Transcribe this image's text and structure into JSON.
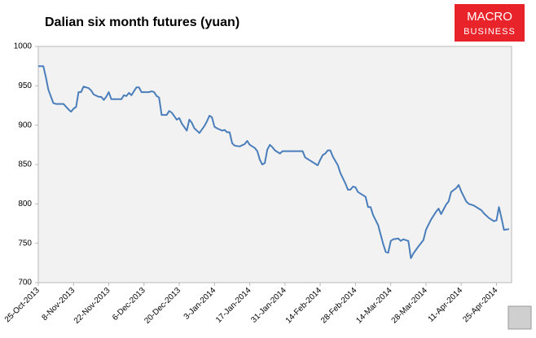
{
  "chart_data": {
    "type": "line",
    "title": "Dalian six month futures (yuan)",
    "color": "#4a7ebb",
    "x": [
      "2013-10-25",
      "2013-10-27",
      "2013-10-28",
      "2013-10-29",
      "2013-10-31",
      "2013-11-01",
      "2013-11-04",
      "2013-11-06",
      "2013-11-07",
      "2013-11-08",
      "2013-11-09",
      "2013-11-10",
      "2013-11-11",
      "2013-11-12",
      "2013-11-14",
      "2013-11-15",
      "2013-11-16",
      "2013-11-18",
      "2013-11-19",
      "2013-11-20",
      "2013-11-21",
      "2013-11-22",
      "2013-11-23",
      "2013-11-24",
      "2013-11-27",
      "2013-11-28",
      "2013-11-29",
      "2013-11-30",
      "2013-12-01",
      "2013-12-02",
      "2013-12-03",
      "2013-12-04",
      "2013-12-05",
      "2013-12-08",
      "2013-12-09",
      "2013-12-10",
      "2013-12-11",
      "2013-12-12",
      "2013-12-13",
      "2013-12-15",
      "2013-12-16",
      "2013-12-17",
      "2013-12-19",
      "2013-12-20",
      "2013-12-21",
      "2013-12-23",
      "2013-12-24",
      "2013-12-25",
      "2013-12-26",
      "2013-12-28",
      "2013-12-30",
      "2013-12-31",
      "2014-01-01",
      "2014-01-02",
      "2014-01-03",
      "2014-01-04",
      "2014-01-06",
      "2014-01-07",
      "2014-01-08",
      "2014-01-09",
      "2014-01-10",
      "2014-01-11",
      "2014-01-13",
      "2014-01-15",
      "2014-01-16",
      "2014-01-17",
      "2014-01-19",
      "2014-01-20",
      "2014-01-21",
      "2014-01-22",
      "2014-01-23",
      "2014-01-24",
      "2014-01-25",
      "2014-01-26",
      "2014-01-27",
      "2014-01-29",
      "2014-01-30",
      "2014-02-02",
      "2014-02-07",
      "2014-02-08",
      "2014-02-10",
      "2014-02-12",
      "2014-02-13",
      "2014-02-14",
      "2014-02-15",
      "2014-02-16",
      "2014-02-17",
      "2014-02-18",
      "2014-02-19",
      "2014-02-21",
      "2014-02-22",
      "2014-02-24",
      "2014-02-25",
      "2014-02-26",
      "2014-02-27",
      "2014-02-28",
      "2014-03-01",
      "2014-03-03",
      "2014-03-04",
      "2014-03-05",
      "2014-03-06",
      "2014-03-07",
      "2014-03-09",
      "2014-03-10",
      "2014-03-11",
      "2014-03-12",
      "2014-03-13",
      "2014-03-14",
      "2014-03-15",
      "2014-03-17",
      "2014-03-18",
      "2014-03-19",
      "2014-03-21",
      "2014-03-22",
      "2014-03-23",
      "2014-03-25",
      "2014-03-27",
      "2014-03-28",
      "2014-03-30",
      "2014-04-01",
      "2014-04-02",
      "2014-04-03",
      "2014-04-05",
      "2014-04-06",
      "2014-04-07",
      "2014-04-09",
      "2014-04-10",
      "2014-04-11",
      "2014-04-13",
      "2014-04-14",
      "2014-04-16",
      "2014-04-19",
      "2014-04-20",
      "2014-04-22",
      "2014-04-24",
      "2014-04-25",
      "2014-04-26",
      "2014-04-27",
      "2014-04-28",
      "2014-04-30"
    ],
    "values": [
      975,
      975,
      961,
      945,
      928,
      927,
      927,
      920,
      917,
      921,
      923,
      942,
      942,
      949,
      947,
      944,
      939,
      936,
      936,
      932,
      936,
      942,
      933,
      933,
      933,
      938,
      937,
      941,
      938,
      943,
      948,
      948,
      942,
      942,
      943,
      942,
      937,
      935,
      913,
      913,
      918,
      916,
      907,
      909,
      902,
      893,
      907,
      903,
      896,
      890,
      899,
      905,
      912,
      910,
      898,
      896,
      893,
      894,
      891,
      891,
      877,
      874,
      873,
      876,
      880,
      875,
      871,
      867,
      856,
      850,
      852,
      869,
      875,
      872,
      868,
      864,
      867,
      867,
      867,
      859,
      855,
      851,
      849,
      856,
      862,
      864,
      868,
      868,
      860,
      849,
      839,
      826,
      818,
      818,
      822,
      821,
      815,
      811,
      809,
      796,
      796,
      786,
      773,
      761,
      749,
      739,
      738,
      753,
      755,
      756,
      753,
      755,
      753,
      731,
      737,
      746,
      754,
      767,
      780,
      790,
      794,
      787,
      799,
      803,
      815,
      820,
      824,
      816,
      803,
      800,
      798,
      792,
      788,
      782,
      778,
      779,
      796,
      782,
      767,
      768
    ],
    "xlim": [
      "2013-10-25",
      "2014-05-01"
    ],
    "xticks": [
      {
        "value": "2013-10-25",
        "label": "25-Oct-2013"
      },
      {
        "value": "2013-11-08",
        "label": "8-Nov-2013"
      },
      {
        "value": "2013-11-22",
        "label": "22-Nov-2013"
      },
      {
        "value": "2013-12-06",
        "label": "6-Dec-2013"
      },
      {
        "value": "2013-12-20",
        "label": "20-Dec-2013"
      },
      {
        "value": "2014-01-03",
        "label": "3-Jan-2014"
      },
      {
        "value": "2014-01-17",
        "label": "17-Jan-2014"
      },
      {
        "value": "2014-01-31",
        "label": "31-Jan-2014"
      },
      {
        "value": "2014-02-14",
        "label": "14-Feb-2014"
      },
      {
        "value": "2014-02-28",
        "label": "28-Feb-2014"
      },
      {
        "value": "2014-03-14",
        "label": "14-Mar-2014"
      },
      {
        "value": "2014-03-28",
        "label": "28-Mar-2014"
      },
      {
        "value": "2014-04-11",
        "label": "11-Apr-2014"
      },
      {
        "value": "2014-04-25",
        "label": "25-Apr-2014"
      }
    ],
    "ylim": [
      700,
      1000
    ],
    "yticks": [
      700,
      750,
      800,
      850,
      900,
      950,
      1000
    ],
    "grid": false
  },
  "logo": {
    "line1": "MACRO",
    "line2": "BUSINESS"
  }
}
